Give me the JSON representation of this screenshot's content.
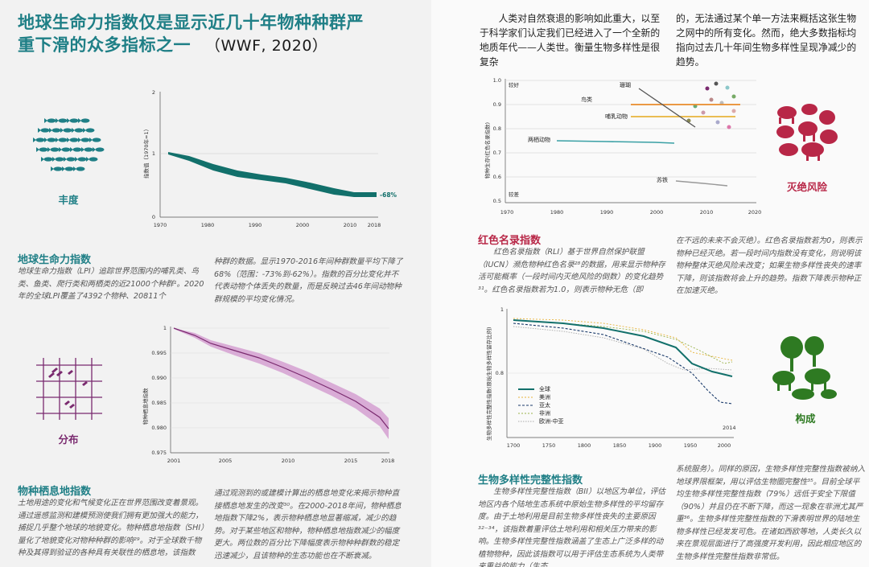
{
  "left": {
    "title_line1": "地球生命力指数仅是显示近几十年物种种群严",
    "title_line2": "重下滑的众多指标之一",
    "title_ref": "（WWF, 2020）",
    "abundance": {
      "icon_label": "丰度",
      "section_title": "地球生命力指数",
      "para_col1": "地球生命力指数（LPI）追踪世界范围内的哺乳类、鸟类、鱼类、爬行类和两栖类的近21000个种群¹。2020年的全球LPI覆盖了4392个物种、20811个",
      "para_col2": "种群的数据。显示1970-2016年间种群数量平均下降了68%（范围：-73%到-62%）。指数的百分比变化并不代表动物个体丢失的数量，而是反映过去46年间动物种群规模的平均变化情况。"
    },
    "distribution": {
      "icon_label": "分布",
      "section_title": "物种栖息地指数",
      "para_col1": "土地用途的变化和气候变化正在世界范围改变着景观。通过遥感监测和建模预测使我们拥有更加强大的能力，捕捉几乎整个地球的地貌变化。物种栖息地指数（SHI）量化了地貌变化对物种种群的影响²⁹。对于全球数千物种及其得到验证的各种具有关联性的栖息地，该指数",
      "para_col2": "通过观测到的或建模计算出的栖息地变化来揭示物种直接栖息地发生的改变³⁰。在2000-2018年间，物种栖息地指数下降2%，表示物种栖息地显著缩减，减少的趋势。对于某些地区和物种，物种栖息地指数减少的幅度更大。两位数的百分比下降幅度表示物种种群数的稳定迅速减少，且该物种的生态功能也在不断衰减。"
    },
    "chart_lpi": {
      "ylabel": "指数值（1970年=1）",
      "yticks": [
        "0",
        "1",
        "2"
      ],
      "xticks": [
        "1970",
        "1980",
        "1990",
        "2000",
        "2010",
        "2018"
      ],
      "end_label": "-68%"
    },
    "chart_shi": {
      "ylabel": "物种栖息地指数",
      "yticks": [
        "1",
        "0.995",
        "0.990",
        "0.985",
        "0.980",
        "0.975"
      ],
      "xticks": [
        "2001",
        "2005",
        "2010",
        "2015",
        "2018"
      ]
    }
  },
  "right": {
    "intro_col1": "人类对自然衰退的影响如此重大，以至于科学家们认定我们已经进入了一个全新的地质年代——人类世。衡量生物多样性是很复杂",
    "intro_col2": "的，无法通过某个单一方法来概括这张生物之网中的所有变化。然而，绝大多数指标均指向过去几十年间生物多样性呈现净减少的趋势。",
    "redlist": {
      "icon_label": "灭绝风险",
      "section_title": "红色名录指数",
      "para_col1": "红色名录指数（RLI）基于世界自然保护联盟（IUCN）濒危物种红色名录²⁸的数据，用来显示物种存活可能概率（一段时间内灭绝风险的倒数）的变化趋势³¹。红色名录指数若为1.0，则表示物种无危（即",
      "para_col2": "在不远的未来不会灭绝）。红色名录指数若为0，则表示物种已经灭绝。若一段时间内指数没有变化，则说明该物种整体灭绝风险未改变；如果生物多样性丧失的速率下降，则该指数将会上升的趋势。指数下降表示物种正在加速灭绝。"
    },
    "chart_rli": {
      "ylabel": "物种生存(红色名录指数)",
      "yticks": [
        "1.0",
        "0.9",
        "0.8",
        "0.7",
        "0.6",
        "0.5"
      ],
      "xticks": [
        "1970",
        "1980",
        "1990",
        "2000",
        "2010",
        "2020"
      ],
      "top_label": "较好",
      "bottom_label": "较差",
      "series_labels": {
        "corals": "珊瑚",
        "birds": "鸟类",
        "mammals": "哺乳动物",
        "amphibians": "两栖动物",
        "cycads": "苏铁"
      }
    },
    "integrity": {
      "icon_label": "构成",
      "section_title": "生物多样性完整性指数",
      "para_col1": "生物多样性完整性指数（BII）以地区为单位，评估地区内各个陆地生态系统中原始生物多样性的平均留存度。由于土地利用是目前生物多样性丧失的主要原因³²⁻³⁴，该指数着重评估土地利用和相关压力带来的影响。生物多样性完整性指数涵盖了生态上广泛多样的动植物物种，因此该指数可以用于评估生态系统为人类带来重益的能力（生态",
      "para_col2": "系统服务）。同样的原因，生物多样性完整性指数被纳入地球界限框架，用以评估生物圈完整性³⁵。目前全球平均生物多样性完整性指数（79%）远低于安全下限值（90%）并且仍在不断下降，而这一现象在非洲尤其严重³⁶。生物多样性完整性指数的下滑表明世界的陆地生物多样性已经发发可危。在诸如西欧等地，人类长久以来在景观层面进行了高强度开发利用，因此相应地区的生物多样性完整性指数非常低。"
    },
    "chart_bii": {
      "ylabel": "生物多样性完整性指数(原始生物多样性留存比例)",
      "yticks": [
        "1",
        "0.8"
      ],
      "xticks": [
        "1700",
        "1750",
        "1800",
        "1850",
        "1900",
        "1950",
        "2000"
      ],
      "end_label": "2014",
      "legend": [
        "全球",
        "美洲",
        "亚太",
        "非洲",
        "欧洲-中亚"
      ]
    }
  },
  "colors": {
    "teal": "#1f7f86",
    "teal_dark": "#12706b",
    "purple": "#7a2a6f",
    "purple_band": "#d6a4d3",
    "red": "#b82747",
    "green": "#2e7a22",
    "orange": "#e98b2a"
  }
}
